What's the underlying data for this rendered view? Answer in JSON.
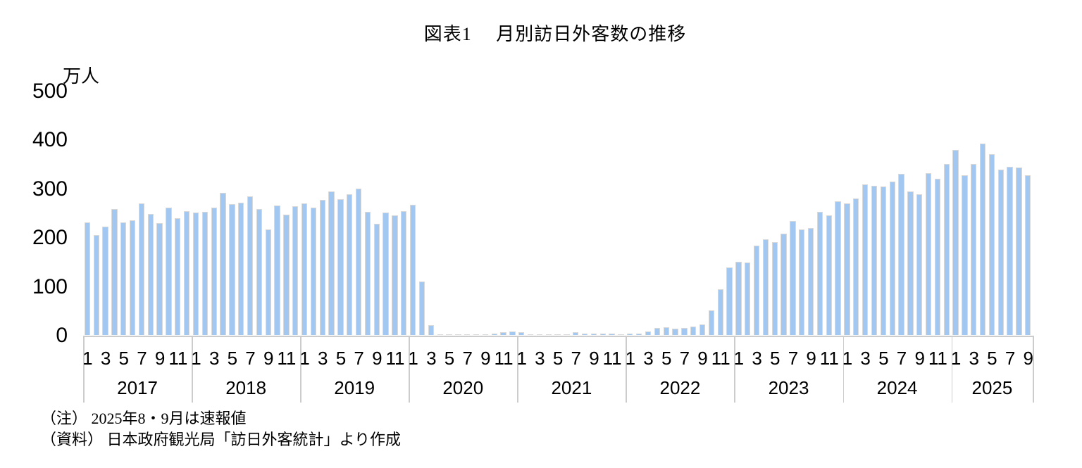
{
  "title": "図表1　 月別訪日外客数の推移",
  "y_axis": {
    "unit": "万人",
    "ticks": [
      "0",
      "100",
      "200",
      "300",
      "400",
      "500"
    ]
  },
  "notes": [
    "（注） 2025年8・9月は速報値",
    "（資料） 日本政府観光局「訪日外客統計」より作成"
  ],
  "colors": {
    "bar_fill": "#A2C7F0",
    "bar_border": "#D9D9D9",
    "axis_line": "#CCCCCC",
    "text": "#000000"
  },
  "chart_data": {
    "type": "bar",
    "title": "図表1　月別訪日外客数の推移",
    "ylabel": "万人",
    "ylim": [
      0,
      500
    ],
    "ytick_interval": 100,
    "grid": false,
    "legend": false,
    "x_tick_months": [
      1,
      3,
      5,
      7,
      9,
      11
    ],
    "series": [
      {
        "year": "2017",
        "values": [
          229.6,
          203.6,
          220.6,
          257.9,
          229.5,
          234.7,
          268.2,
          247.8,
          228.0,
          259.5,
          237.8,
          252.2
        ]
      },
      {
        "year": "2018",
        "values": [
          250.2,
          250.9,
          260.8,
          290.1,
          267.5,
          270.5,
          283.2,
          257.8,
          216.0,
          264.1,
          245.1,
          263.3
        ]
      },
      {
        "year": "2019",
        "values": [
          268.9,
          260.4,
          276.0,
          292.7,
          277.3,
          288.0,
          299.1,
          252.0,
          227.3,
          249.7,
          244.1,
          252.6
        ]
      },
      {
        "year": "2020",
        "values": [
          266.1,
          108.5,
          19.4,
          0.3,
          0.2,
          0.3,
          0.4,
          0.9,
          1.4,
          2.7,
          5.7,
          5.9
        ]
      },
      {
        "year": "2021",
        "values": [
          4.7,
          0.7,
          1.2,
          1.1,
          1.0,
          0.9,
          5.1,
          2.6,
          1.8,
          2.2,
          2.1,
          1.2
        ]
      },
      {
        "year": "2022",
        "values": [
          1.8,
          1.7,
          6.6,
          13.9,
          14.7,
          12.0,
          14.4,
          16.9,
          20.6,
          49.9,
          93.5,
          137.0
        ]
      },
      {
        "year": "2023",
        "values": [
          149.7,
          147.5,
          181.7,
          194.9,
          189.9,
          207.3,
          232.1,
          215.7,
          218.4,
          251.7,
          244.1,
          273.4
        ]
      },
      {
        "year": "2024",
        "values": [
          268.8,
          278.8,
          308.2,
          304.3,
          304.0,
          313.6,
          329.3,
          293.3,
          287.3,
          331.2,
          318.7,
          348.9
        ]
      },
      {
        "year": "2025",
        "values": [
          378.1,
          325.8,
          349.7,
          390.9,
          369.4,
          337.8,
          343.7,
          342.9,
          326.7
        ]
      }
    ]
  }
}
